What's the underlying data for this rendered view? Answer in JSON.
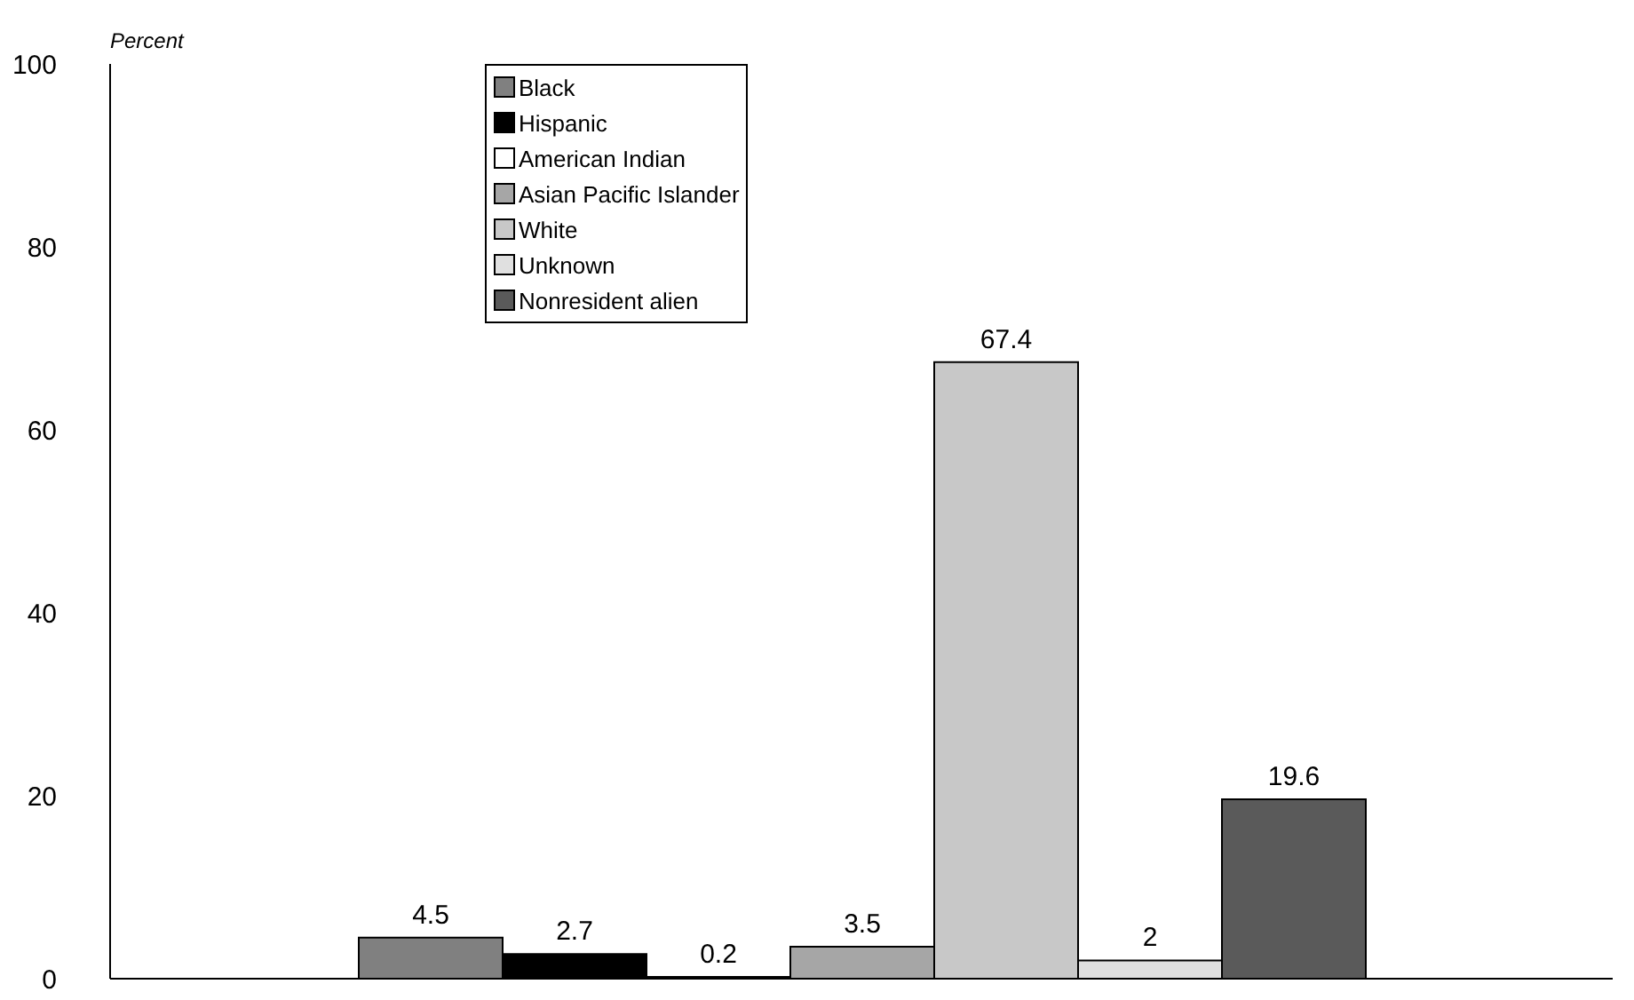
{
  "chart_data": {
    "type": "bar",
    "ylabel": "Percent",
    "categories": [
      null
    ],
    "series": [
      {
        "name": "Black",
        "color": "#808080",
        "values": [
          4.5
        ]
      },
      {
        "name": "Hispanic",
        "color": "#000000",
        "values": [
          2.7
        ]
      },
      {
        "name": "American Indian",
        "color": "#ffffff",
        "values": [
          0.2
        ]
      },
      {
        "name": "Asian Pacific Islander",
        "color": "#a6a6a6",
        "values": [
          3.5
        ]
      },
      {
        "name": "White",
        "color": "#c8c8c8",
        "values": [
          67.4
        ]
      },
      {
        "name": "Unknown",
        "color": "#e0e0e0",
        "values": [
          2
        ]
      },
      {
        "name": "Nonresident alien",
        "color": "#5a5a5a",
        "values": [
          19.6
        ]
      }
    ],
    "ylim": [
      0,
      100
    ],
    "yticks": [
      0,
      20,
      40,
      60,
      80,
      100
    ],
    "data_labels": true,
    "legend": "top",
    "grid": false
  }
}
